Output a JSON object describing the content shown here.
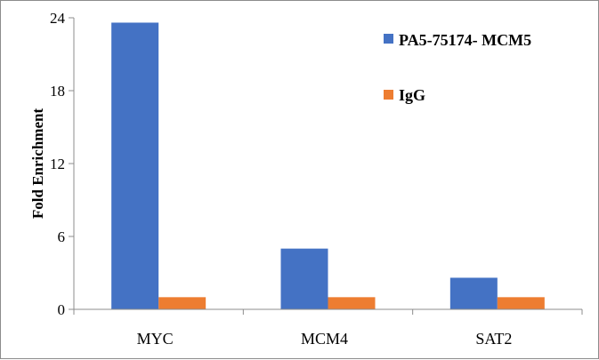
{
  "chart_data": {
    "type": "bar",
    "categories": [
      "MYC",
      "MCM4",
      "SAT2"
    ],
    "series": [
      {
        "name": "PA5-75174- MCM5",
        "values": [
          23.6,
          5.0,
          2.6
        ],
        "color": "#4472C4"
      },
      {
        "name": "IgG",
        "values": [
          1.0,
          1.0,
          1.0
        ],
        "color": "#ED7D31"
      }
    ],
    "ylabel": "Fold Enrichment",
    "yticks": [
      0,
      6,
      12,
      18,
      24
    ],
    "ylim": [
      0,
      24
    ],
    "grid": false,
    "legend": "top-right"
  }
}
